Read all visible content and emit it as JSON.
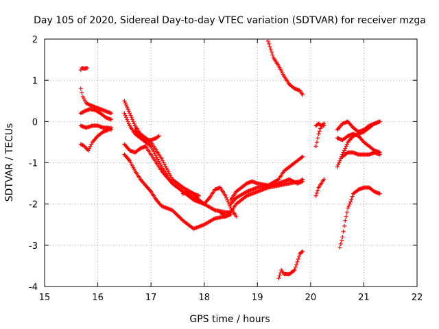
{
  "chart_data": {
    "type": "scatter",
    "title": "Day 105 of 2020, Sidereal Day-to-day VTEC variation (SDTVAR) for receiver mzga",
    "xlabel": "GPS time / hours",
    "ylabel": "SDTVAR / TECUs",
    "xlim": [
      15,
      22
    ],
    "ylim": [
      -4,
      2
    ],
    "xticks": [
      "15",
      "16",
      "17",
      "18",
      "19",
      "20",
      "21",
      "22"
    ],
    "yticks": [
      "-4",
      "-3",
      "-2",
      "-1",
      "0",
      "1",
      "2"
    ],
    "grid": true,
    "marker": "+",
    "color": "#ff0000",
    "series": [
      {
        "name": "s1",
        "x": [
          15.68,
          15.7,
          15.75,
          15.8
        ],
        "y": [
          1.25,
          1.3,
          1.28,
          1.3
        ]
      },
      {
        "name": "s2",
        "x": [
          15.68,
          15.72,
          15.78,
          15.85,
          15.95,
          16.05,
          16.15,
          16.25
        ],
        "y": [
          0.8,
          0.6,
          0.45,
          0.4,
          0.35,
          0.3,
          0.25,
          0.2
        ]
      },
      {
        "name": "s3",
        "x": [
          15.68,
          15.75,
          15.85,
          15.95,
          16.05,
          16.15,
          16.25
        ],
        "y": [
          0.2,
          0.25,
          0.3,
          0.28,
          0.2,
          0.1,
          0.05
        ]
      },
      {
        "name": "s4",
        "x": [
          15.68,
          15.78,
          15.9,
          16.0,
          16.1,
          16.2,
          16.25
        ],
        "y": [
          -0.1,
          -0.15,
          -0.1,
          -0.1,
          -0.15,
          -0.15,
          -0.2
        ]
      },
      {
        "name": "s5",
        "x": [
          15.68,
          15.75,
          15.82,
          15.9,
          16.0,
          16.1,
          16.2,
          16.25
        ],
        "y": [
          -0.55,
          -0.6,
          -0.7,
          -0.5,
          -0.35,
          -0.25,
          -0.2,
          -0.15
        ]
      },
      {
        "name": "s6",
        "x": [
          16.5,
          16.6,
          16.7,
          16.8,
          16.9,
          17.0,
          17.2,
          17.4,
          17.6,
          17.8,
          17.9
        ],
        "y": [
          0.5,
          0.2,
          -0.1,
          -0.3,
          -0.4,
          -0.5,
          -0.9,
          -1.4,
          -1.6,
          -1.75,
          -1.8
        ]
      },
      {
        "name": "s7",
        "x": [
          16.5,
          16.6,
          16.7,
          16.8,
          16.9,
          17.0,
          17.2,
          17.4,
          17.6,
          17.8,
          18.0
        ],
        "y": [
          0.2,
          -0.1,
          -0.3,
          -0.4,
          -0.5,
          -0.6,
          -1.1,
          -1.5,
          -1.7,
          -1.9,
          -2.0
        ]
      },
      {
        "name": "s8",
        "x": [
          16.7,
          16.8,
          16.9,
          17.0,
          17.1,
          17.15
        ],
        "y": [
          -0.2,
          -0.35,
          -0.45,
          -0.45,
          -0.4,
          -0.35
        ]
      },
      {
        "name": "s9",
        "x": [
          16.5,
          16.6,
          16.7,
          16.8,
          16.9,
          17.0,
          17.2,
          17.4,
          17.6,
          17.8,
          18.0,
          18.2,
          18.4,
          18.5
        ],
        "y": [
          -0.55,
          -0.7,
          -0.75,
          -0.65,
          -0.6,
          -0.8,
          -1.2,
          -1.5,
          -1.7,
          -1.85,
          -2.0,
          -2.15,
          -2.2,
          -2.2
        ]
      },
      {
        "name": "s10",
        "x": [
          16.5,
          16.6,
          16.7,
          16.8,
          16.9,
          17.0,
          17.1,
          17.2,
          17.4,
          17.6,
          17.8,
          18.0,
          18.2,
          18.4,
          18.5
        ],
        "y": [
          -0.8,
          -0.95,
          -1.2,
          -1.4,
          -1.55,
          -1.7,
          -1.9,
          -2.05,
          -2.15,
          -2.4,
          -2.6,
          -2.5,
          -2.35,
          -2.3,
          -2.25
        ]
      },
      {
        "name": "s11",
        "x": [
          17.6,
          17.7,
          17.8,
          17.9,
          18.0,
          18.1,
          18.2,
          18.3,
          18.4,
          18.5,
          18.6
        ],
        "y": [
          -1.75,
          -1.7,
          -1.75,
          -1.9,
          -2.0,
          -1.85,
          -1.65,
          -1.6,
          -1.8,
          -2.1,
          -2.3
        ]
      },
      {
        "name": "s12",
        "x": [
          18.3,
          18.4,
          18.5,
          18.6,
          18.8,
          19.0,
          19.2,
          19.4,
          19.6,
          19.8,
          19.85
        ],
        "y": [
          -2.2,
          -2.3,
          -2.2,
          -2.0,
          -1.8,
          -1.7,
          -1.6,
          -1.55,
          -1.5,
          -1.45,
          -1.4
        ]
      },
      {
        "name": "s13",
        "x": [
          18.5,
          18.6,
          18.7,
          18.8,
          18.9,
          19.0,
          19.2,
          19.4,
          19.5,
          19.6,
          19.7,
          19.8,
          19.85
        ],
        "y": [
          -1.9,
          -1.7,
          -1.6,
          -1.5,
          -1.45,
          -1.5,
          -1.55,
          -1.4,
          -1.2,
          -1.1,
          -1.0,
          -0.9,
          -0.85
        ]
      },
      {
        "name": "s14",
        "x": [
          18.5,
          18.6,
          18.8,
          19.0,
          19.2,
          19.4,
          19.6,
          19.75,
          19.85
        ],
        "y": [
          -2.0,
          -1.85,
          -1.7,
          -1.6,
          -1.55,
          -1.5,
          -1.4,
          -1.5,
          -1.45
        ]
      },
      {
        "name": "s15",
        "x": [
          19.2,
          19.25,
          19.3,
          19.4,
          19.5,
          19.6,
          19.7,
          19.8,
          19.85
        ],
        "y": [
          1.95,
          1.75,
          1.55,
          1.35,
          1.1,
          0.9,
          0.8,
          0.75,
          0.65
        ]
      },
      {
        "name": "s16",
        "x": [
          19.4,
          19.45,
          19.5,
          19.6,
          19.7,
          19.75,
          19.8,
          19.85
        ],
        "y": [
          -3.8,
          -3.6,
          -3.7,
          -3.7,
          -3.6,
          -3.4,
          -3.2,
          -3.15
        ]
      },
      {
        "name": "s17",
        "x": [
          20.1,
          20.15,
          20.2,
          20.25
        ],
        "y": [
          -1.8,
          -1.6,
          -1.5,
          -1.4
        ]
      },
      {
        "name": "s18",
        "x": [
          20.1,
          20.15,
          20.2,
          20.25
        ],
        "y": [
          -0.6,
          -0.3,
          -0.1,
          -0.05
        ]
      },
      {
        "name": "s19",
        "x": [
          20.1,
          20.15,
          20.2,
          20.25
        ],
        "y": [
          -0.1,
          -0.05,
          -0.1,
          -0.1
        ]
      },
      {
        "name": "s20",
        "x": [
          20.5,
          20.6,
          20.7,
          20.8,
          20.9,
          21.0,
          21.1,
          21.2,
          21.3
        ],
        "y": [
          -0.2,
          -0.05,
          0.0,
          -0.15,
          -0.25,
          -0.2,
          -0.1,
          -0.05,
          0.0
        ]
      },
      {
        "name": "s21",
        "x": [
          20.5,
          20.6,
          20.7,
          20.8,
          20.9,
          21.0,
          21.1,
          21.2,
          21.3
        ],
        "y": [
          -1.1,
          -0.8,
          -0.5,
          -0.35,
          -0.3,
          -0.25,
          -0.15,
          -0.05,
          0.0
        ]
      },
      {
        "name": "s22",
        "x": [
          20.5,
          20.6,
          20.7,
          20.8,
          20.9,
          21.0,
          21.1,
          21.2,
          21.3
        ],
        "y": [
          -0.4,
          -0.45,
          -0.35,
          -0.3,
          -0.35,
          -0.5,
          -0.6,
          -0.7,
          -0.75
        ]
      },
      {
        "name": "s23",
        "x": [
          20.6,
          20.7,
          20.8,
          20.9,
          21.0,
          21.1,
          21.2,
          21.3
        ],
        "y": [
          -0.85,
          -0.75,
          -0.75,
          -0.8,
          -0.8,
          -0.8,
          -0.75,
          -0.8
        ]
      },
      {
        "name": "s24",
        "x": [
          20.55,
          20.6,
          20.65,
          20.7,
          20.75,
          20.8,
          20.9,
          21.0,
          21.1,
          21.2,
          21.3
        ],
        "y": [
          -3.05,
          -2.8,
          -2.4,
          -2.1,
          -1.95,
          -1.75,
          -1.65,
          -1.6,
          -1.6,
          -1.7,
          -1.75
        ]
      }
    ]
  }
}
